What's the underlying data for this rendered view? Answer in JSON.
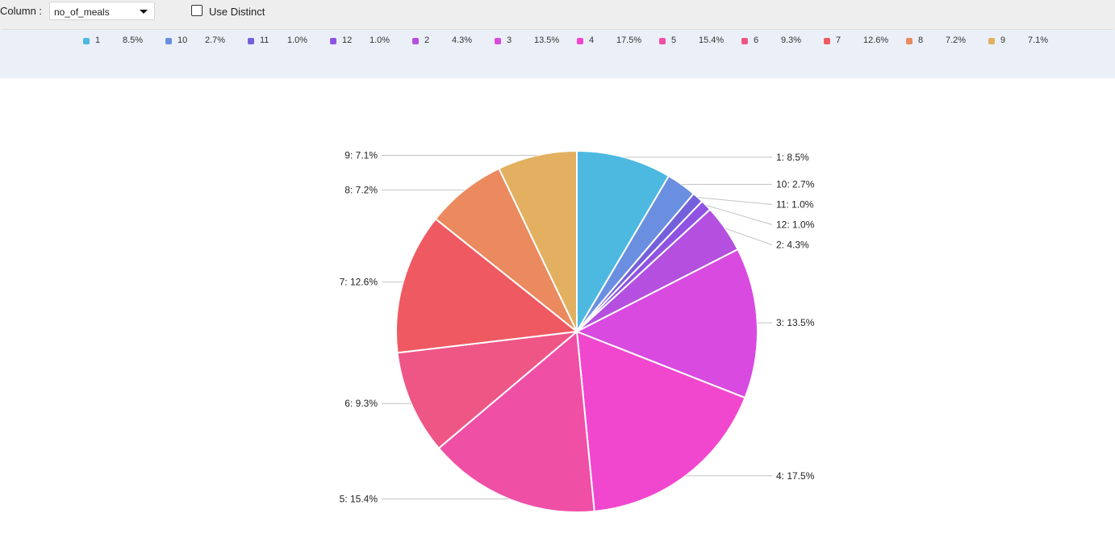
{
  "toolbar": {
    "column_label": "Column :",
    "column_value": "no_of_meals",
    "distinct_label": "Use Distinct"
  },
  "chart_data": {
    "type": "pie",
    "slices": [
      {
        "name": "1",
        "value": 8.5,
        "pct": "8.5%",
        "label": "1: 8.5%",
        "color": "#4db8e0"
      },
      {
        "name": "10",
        "value": 2.7,
        "pct": "2.7%",
        "label": "10: 2.7%",
        "color": "#6a8fe0"
      },
      {
        "name": "11",
        "value": 1.0,
        "pct": "1.0%",
        "label": "11: 1.0%",
        "color": "#7560dc"
      },
      {
        "name": "12",
        "value": 1.0,
        "pct": "1.0%",
        "label": "12: 1.0%",
        "color": "#8f52e2"
      },
      {
        "name": "2",
        "value": 4.3,
        "pct": "4.3%",
        "label": "2: 4.3%",
        "color": "#b44fdf"
      },
      {
        "name": "3",
        "value": 13.5,
        "pct": "13.5%",
        "label": "3: 13.5%",
        "color": "#d84ae0"
      },
      {
        "name": "4",
        "value": 17.5,
        "pct": "17.5%",
        "label": "4: 17.5%",
        "color": "#f147cf"
      },
      {
        "name": "5",
        "value": 15.4,
        "pct": "15.4%",
        "label": "5: 15.4%",
        "color": "#f04fa6"
      },
      {
        "name": "6",
        "value": 9.3,
        "pct": "9.3%",
        "label": "6: 9.3%",
        "color": "#ee5686"
      },
      {
        "name": "7",
        "value": 12.6,
        "pct": "12.6%",
        "label": "7: 12.6%",
        "color": "#ef5a62"
      },
      {
        "name": "8",
        "value": 7.2,
        "pct": "7.2%",
        "label": "8: 7.2%",
        "color": "#ea8a5e"
      },
      {
        "name": "9",
        "value": 7.1,
        "pct": "7.1%",
        "label": "9: 7.1%",
        "color": "#e2b060"
      }
    ],
    "legend_position": "top"
  }
}
